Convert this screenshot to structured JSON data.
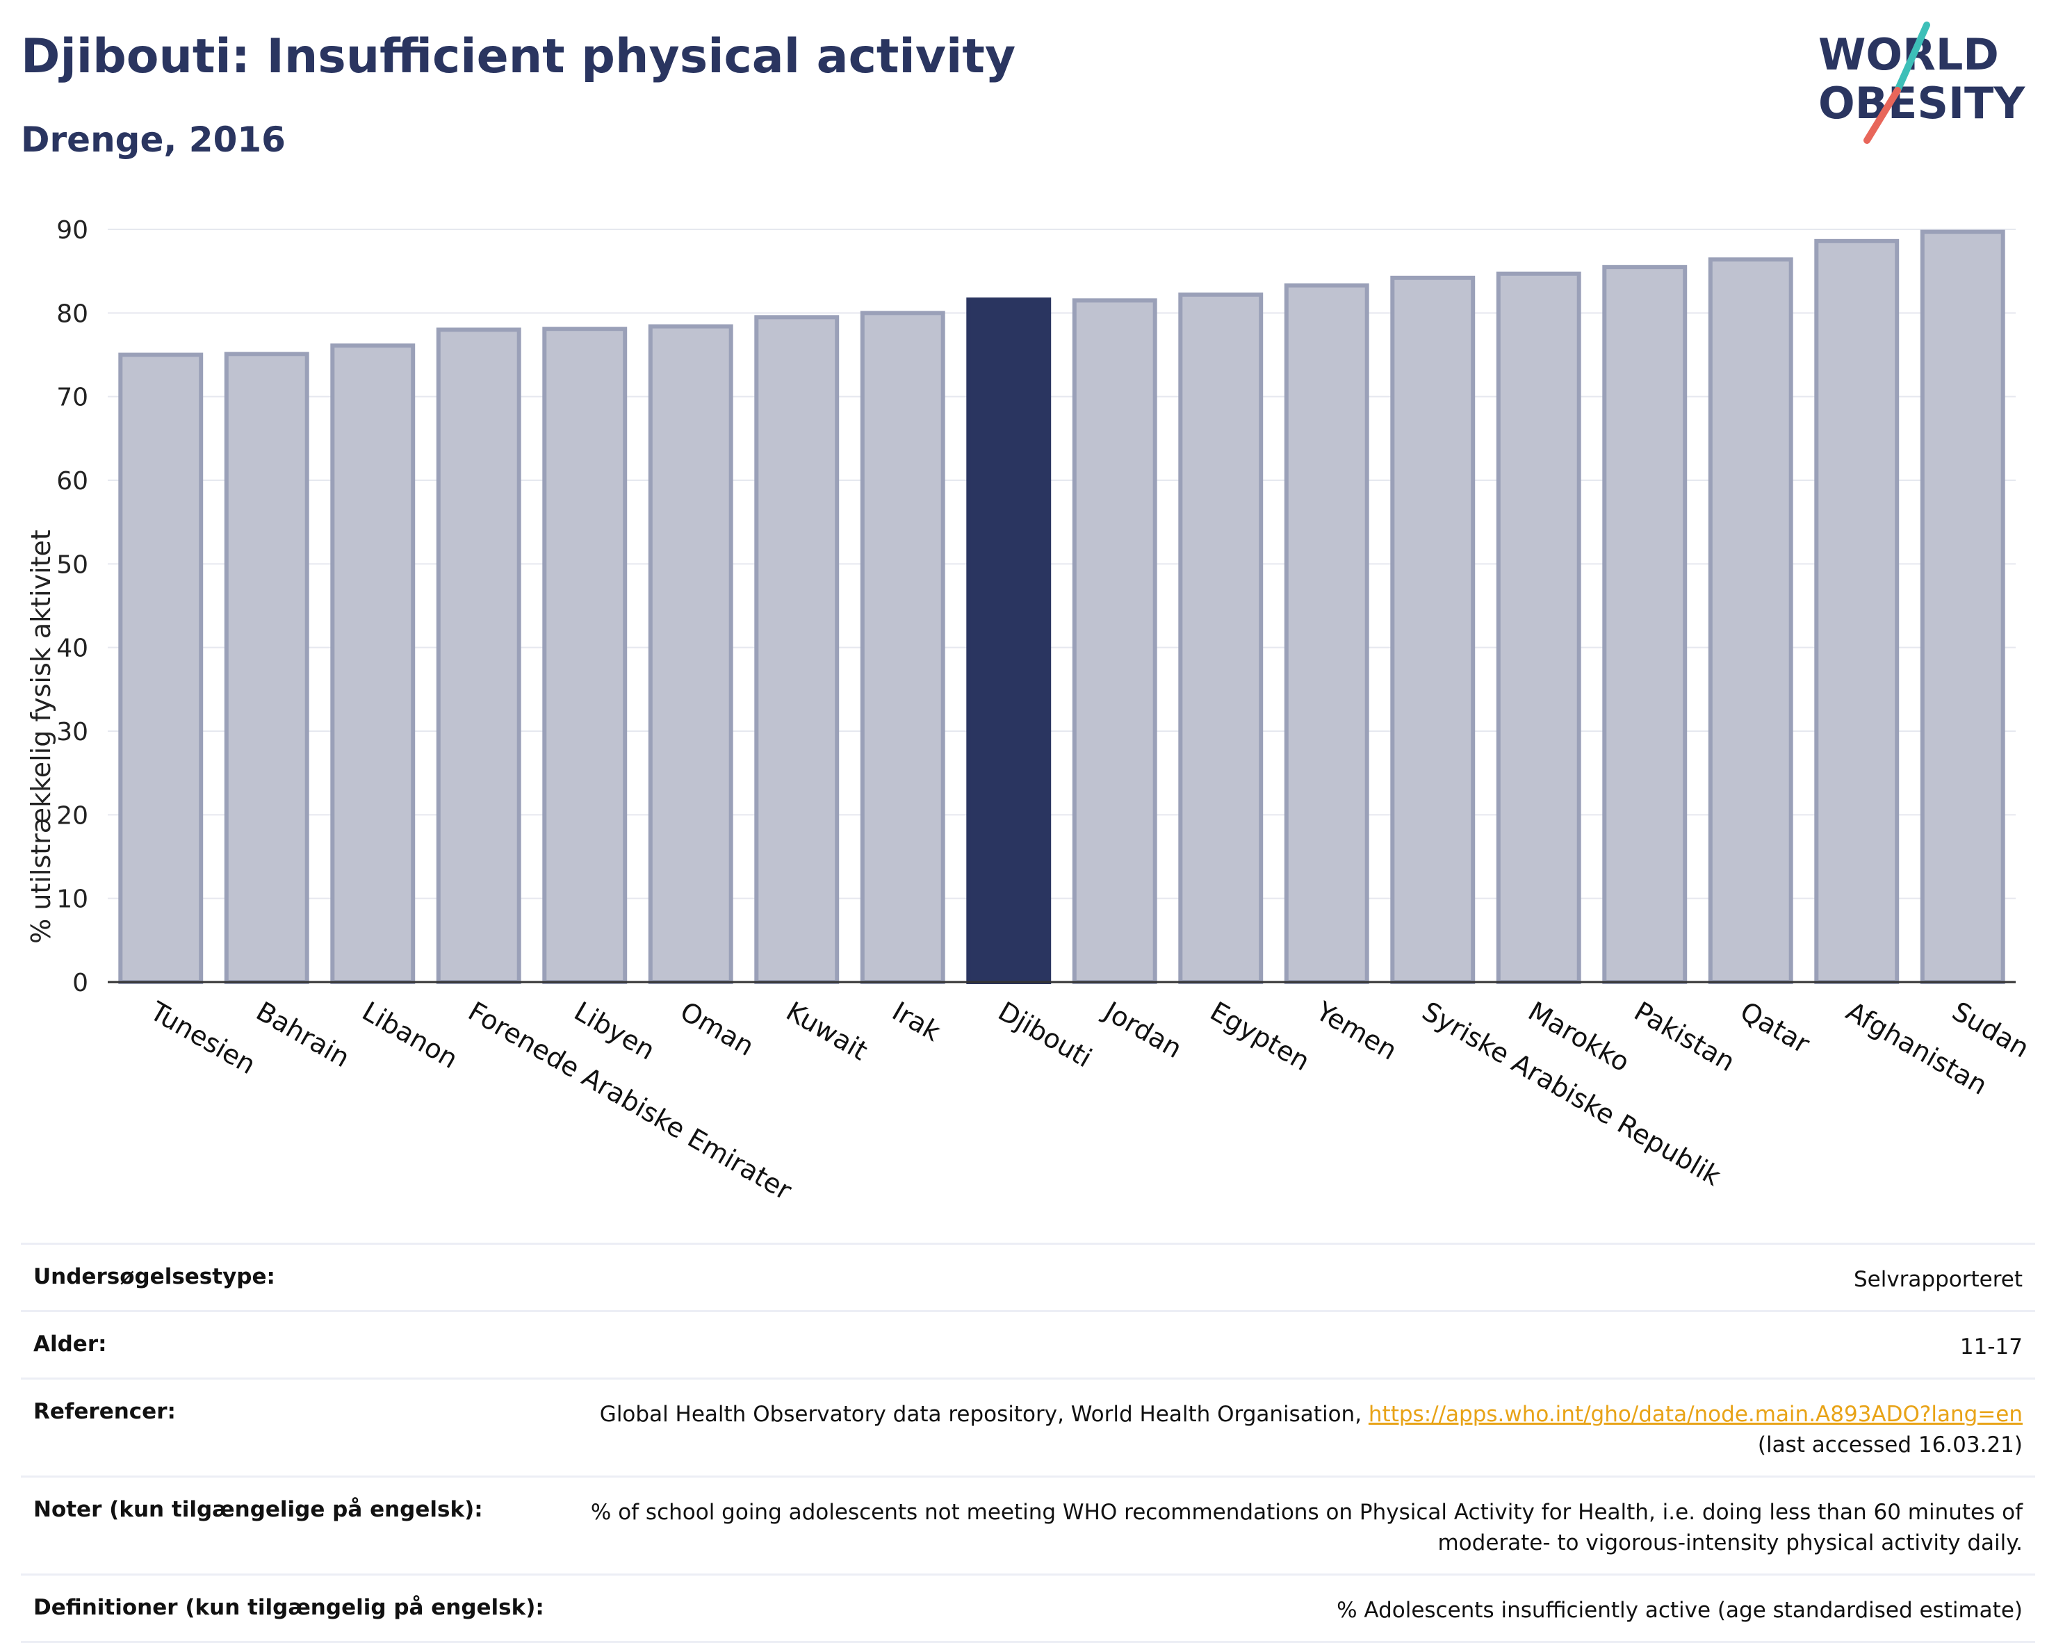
{
  "header": {
    "title": "Djibouti: Insufficient physical activity",
    "subtitle": "Drenge, 2016"
  },
  "logo": {
    "line1": "WORLD",
    "line2": "OBESITY",
    "colors": {
      "text": "#2a3560",
      "slash_top": "#3dbfb8",
      "slash_bottom": "#e8665a"
    }
  },
  "chart_data": {
    "type": "bar",
    "ylabel": "% utilstrækkelig fysisk aktivitet",
    "xlabel": "",
    "ylim": [
      0,
      90
    ],
    "yticks": [
      0,
      10,
      20,
      30,
      40,
      50,
      60,
      70,
      80,
      90
    ],
    "grid": true,
    "highlight": "Djibouti",
    "colors": {
      "default": "#bfc2d0",
      "default_edge": "#9aa0b8",
      "highlight": "#2a3560"
    },
    "categories": [
      "Tunesien",
      "Bahrain",
      "Libanon",
      "Forenede Arabiske Emirater",
      "Libyen",
      "Oman",
      "Kuwait",
      "Irak",
      "Djibouti",
      "Jordan",
      "Egypten",
      "Yemen",
      "Syriske Arabiske Republik",
      "Marokko",
      "Pakistan",
      "Qatar",
      "Afghanistan",
      "Sudan"
    ],
    "values": [
      75.0,
      75.1,
      76.1,
      78.0,
      78.1,
      78.4,
      79.5,
      80.0,
      81.6,
      81.5,
      82.2,
      83.3,
      84.2,
      84.7,
      85.5,
      86.4,
      88.6,
      89.7
    ]
  },
  "meta": [
    {
      "label": "Undersøgelsestype:",
      "value": "Selvrapporteret"
    },
    {
      "label": "Alder:",
      "value": "11-17"
    },
    {
      "label": "Referencer:",
      "value": "Global Health Observatory data repository, World Health Organisation, ",
      "link": "https://apps.who.int/gho/data/node.main.A893ADO?lang=en",
      "value_after": "(last accessed 16.03.21)"
    },
    {
      "label": "Noter (kun tilgængelige på engelsk):",
      "value": "% of school going adolescents not meeting WHO recommendations on Physical Activity for Health, i.e. doing less than 60 minutes of moderate- to vigorous-intensity physical activity daily."
    },
    {
      "label": "Definitioner (kun tilgængelig på engelsk):",
      "value": "% Adolescents insufficiently active (age standardised estimate)"
    }
  ]
}
